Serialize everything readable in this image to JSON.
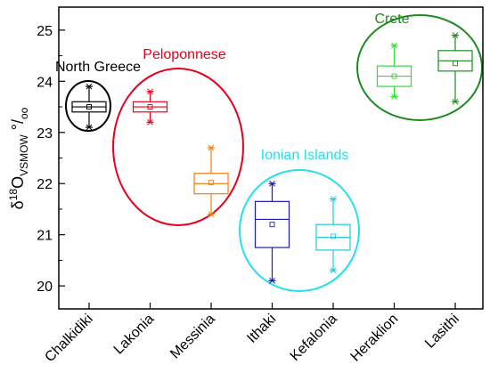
{
  "chart_data": {
    "type": "box",
    "ylabel": {
      "delta": "δ",
      "sup": "18",
      "main": "O",
      "sub": "VSMOW",
      "tail": " °/",
      "oo": "oo"
    },
    "ylim": [
      19.55,
      25.45
    ],
    "yticks": [
      20,
      21,
      22,
      23,
      24,
      25
    ],
    "categories": [
      "Chalkidiki",
      "Lakonia",
      "Messinia",
      "Ithaki",
      "Kefalonia",
      "Heraklion",
      "Lasithi"
    ],
    "boxes": [
      {
        "category": "Chalkidiki",
        "color": "#000000",
        "min": 23.1,
        "q1": 23.4,
        "median": 23.5,
        "q3": 23.6,
        "max": 23.9,
        "mean": 23.5
      },
      {
        "category": "Lakonia",
        "color": "#e8001c",
        "min": 23.2,
        "q1": 23.4,
        "median": 23.5,
        "q3": 23.6,
        "max": 23.8,
        "mean": 23.5
      },
      {
        "category": "Messinia",
        "color": "#f07f10",
        "min": 21.4,
        "q1": 21.8,
        "median": 22.0,
        "q3": 22.2,
        "max": 22.7,
        "mean": 22.02
      },
      {
        "category": "Ithaki",
        "color": "#1a1ab8",
        "min": 20.1,
        "q1": 20.75,
        "median": 21.3,
        "q3": 21.65,
        "max": 22.0,
        "mean": 21.2
      },
      {
        "category": "Kefalonia",
        "color": "#22c8e0",
        "min": 20.3,
        "q1": 20.7,
        "median": 20.95,
        "q3": 21.2,
        "max": 21.7,
        "mean": 20.97
      },
      {
        "category": "Heraklion",
        "color": "#33dd33",
        "min": 23.7,
        "q1": 23.9,
        "median": 24.1,
        "q3": 24.3,
        "max": 24.7,
        "mean": 24.1
      },
      {
        "category": "Lasithi",
        "color": "#1e8a1e",
        "min": 23.6,
        "q1": 24.2,
        "median": 24.4,
        "q3": 24.6,
        "max": 24.9,
        "mean": 24.35
      }
    ],
    "groups": [
      {
        "label": "North Greece",
        "color": "#000000",
        "categories": [
          "Chalkidiki"
        ]
      },
      {
        "label": "Peloponnese",
        "color": "#e8001c",
        "categories": [
          "Lakonia",
          "Messinia"
        ]
      },
      {
        "label": "Ionian Islands",
        "color": "#22e0f0",
        "categories": [
          "Ithaki",
          "Kefalonia"
        ]
      },
      {
        "label": "Crete",
        "color": "#1e8a1e",
        "categories": [
          "Heraklion",
          "Lasithi"
        ]
      }
    ]
  }
}
